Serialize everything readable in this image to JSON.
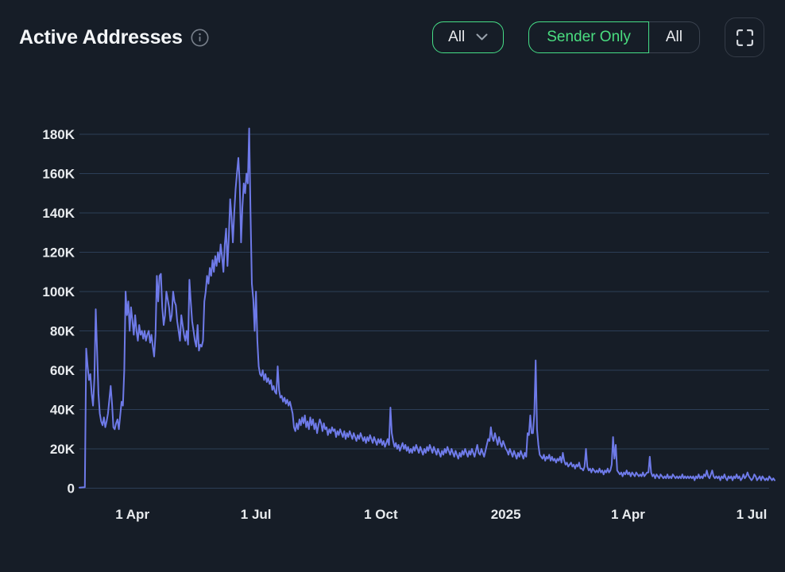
{
  "header": {
    "title": "Active Addresses",
    "info_icon": "info-circle",
    "range_dropdown": {
      "value": "All",
      "icon": "chevron-down"
    },
    "mode_toggle": {
      "options": [
        {
          "label": "Sender Only",
          "active": true
        },
        {
          "label": "All",
          "active": false
        }
      ]
    },
    "fullscreen_icon": "fullscreen-corner-brackets"
  },
  "colors": {
    "background": "#161d27",
    "accent_green": "#46de87",
    "line": "#6e7ae8",
    "grid": "#2c3e57",
    "text_primary": "#f3f5f7",
    "text_muted": "#8b939e"
  },
  "chart_data": {
    "type": "line",
    "title": "Active Addresses",
    "unit": "addresses",
    "x_start_date": "2024-02-22",
    "x_interval": "daily",
    "grid": true,
    "legend_position": "none",
    "ylim": [
      0,
      180000
    ],
    "y_ticks": [
      "0",
      "20K",
      "40K",
      "60K",
      "80K",
      "100K",
      "120K",
      "140K",
      "160K",
      "180K"
    ],
    "y_tick_step_thousands": 20,
    "x_ticks": [
      {
        "day": 39,
        "label": "1 Apr"
      },
      {
        "day": 130,
        "label": "1 Jul"
      },
      {
        "day": 222,
        "label": "1 Oct"
      },
      {
        "day": 314,
        "label": "2025"
      },
      {
        "day": 404,
        "label": "1 Apr"
      },
      {
        "day": 495,
        "label": "1 Jul"
      }
    ],
    "values_thousands": [
      0.3,
      0.35,
      0.4,
      0.45,
      0.5,
      71,
      62,
      55,
      58,
      48,
      42,
      56,
      91,
      70,
      48,
      38,
      34,
      32,
      36,
      31,
      34,
      38,
      45,
      52,
      43,
      31,
      30,
      33,
      35,
      30,
      37,
      44,
      42,
      60,
      100,
      88,
      95,
      80,
      92,
      85,
      78,
      88,
      80,
      75,
      83,
      78,
      80,
      76,
      80,
      75,
      78,
      80,
      74,
      78,
      72,
      67,
      78,
      108,
      95,
      108,
      109,
      92,
      83,
      88,
      100,
      96,
      92,
      85,
      88,
      100,
      95,
      93,
      85,
      80,
      75,
      88,
      83,
      78,
      75,
      80,
      73,
      106,
      95,
      85,
      80,
      75,
      72,
      83,
      70,
      73,
      72,
      75,
      95,
      100,
      108,
      104,
      112,
      108,
      116,
      110,
      118,
      113,
      120,
      115,
      124,
      118,
      110,
      124,
      132,
      113,
      128,
      147,
      138,
      125,
      140,
      152,
      160,
      168,
      155,
      125,
      143,
      155,
      150,
      160,
      155,
      183,
      140,
      104,
      96,
      80,
      100,
      75,
      62,
      58,
      57,
      60,
      55,
      58,
      54,
      56,
      53,
      55,
      50,
      52,
      49,
      48,
      62,
      50,
      46,
      47,
      44,
      46,
      43,
      45,
      42,
      44,
      41,
      38,
      31,
      29,
      33,
      30,
      35,
      32,
      36,
      33,
      37,
      31,
      34,
      30,
      36,
      32,
      35,
      30,
      33,
      28,
      32,
      35,
      33,
      29,
      33,
      30,
      31,
      27,
      30,
      28,
      31,
      29,
      30,
      26,
      29,
      27,
      30,
      28,
      26,
      29,
      25,
      28,
      26,
      29,
      27,
      25,
      28,
      26,
      24,
      27,
      25,
      28,
      26,
      24,
      26,
      23,
      26,
      24,
      27,
      25,
      23,
      26,
      24,
      22,
      25,
      23,
      25,
      22,
      24,
      21,
      23,
      25,
      22,
      41,
      28,
      24,
      21,
      23,
      20,
      22,
      19,
      21,
      23,
      20,
      22,
      19,
      21,
      18,
      20,
      18,
      21,
      19,
      22,
      20,
      18,
      21,
      19,
      17,
      20,
      18,
      21,
      19,
      22,
      20,
      18,
      21,
      19,
      17,
      20,
      18,
      16,
      19,
      17,
      20,
      18,
      21,
      19,
      17,
      20,
      18,
      16,
      19,
      17,
      15,
      18,
      16,
      19,
      17,
      20,
      18,
      16,
      19,
      17,
      20,
      18,
      16,
      19,
      22,
      18,
      17,
      20,
      18,
      16,
      19,
      22,
      25,
      24,
      31,
      26,
      24,
      28,
      25,
      22,
      26,
      23,
      21,
      24,
      22,
      20,
      19,
      17,
      20,
      18,
      16,
      19,
      17,
      15,
      18,
      16,
      19,
      17,
      15,
      18,
      16,
      28,
      27,
      37,
      28,
      28,
      38,
      65,
      30,
      22,
      17,
      16,
      15,
      17,
      14,
      16,
      15,
      17,
      14,
      16,
      14,
      15,
      13,
      15,
      14,
      16,
      13,
      18,
      14,
      12,
      13,
      11,
      12,
      13,
      11,
      12,
      10,
      12,
      11,
      13,
      10,
      10,
      9,
      11,
      20,
      11,
      9,
      10,
      8,
      10,
      9,
      8,
      9,
      8,
      10,
      8,
      9,
      7,
      9,
      8,
      10,
      8,
      9,
      12,
      26,
      15,
      22,
      9,
      8,
      7,
      8,
      6,
      8,
      7,
      9,
      7,
      8,
      6,
      8,
      7,
      6,
      8,
      7,
      6,
      7,
      6,
      8,
      6,
      7,
      8,
      8,
      16,
      8,
      6,
      7,
      5,
      7,
      6,
      5,
      7,
      6,
      5,
      6,
      5,
      7,
      5,
      6,
      5,
      7,
      6,
      5,
      6,
      5,
      6,
      5,
      7,
      5,
      6,
      5,
      6,
      5,
      6,
      5,
      6,
      4,
      6,
      5,
      7,
      5,
      6,
      5,
      7,
      6,
      9,
      6,
      5,
      7,
      9,
      6,
      5,
      6,
      5,
      6,
      4,
      6,
      5,
      7,
      5,
      4,
      6,
      5,
      6,
      4,
      6,
      5,
      7,
      5,
      6,
      4,
      5,
      7,
      5,
      6,
      8,
      6,
      5,
      4,
      5,
      7,
      6,
      4,
      5,
      6,
      4,
      6,
      5,
      4,
      5,
      4,
      6,
      5,
      4,
      5,
      4
    ]
  }
}
